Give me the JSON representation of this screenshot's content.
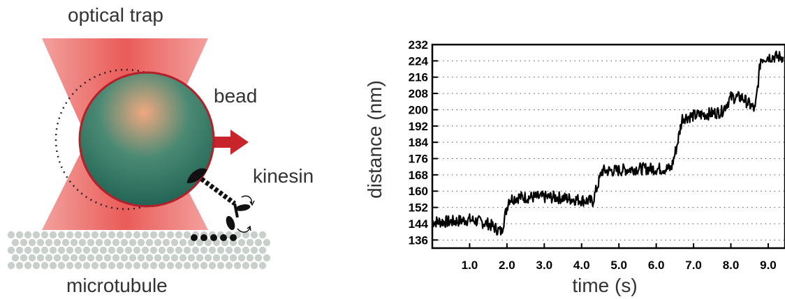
{
  "illustration": {
    "labels": {
      "trap": "optical trap",
      "bead": "bead",
      "kinesin": "kinesin",
      "microtubule": "microtubule"
    },
    "colors": {
      "trap": "#e9534f",
      "bead_center": "#f0a880",
      "bead_edge": "#1d5f50",
      "bead_outline": "#b3202a",
      "arrow": "#c8242c",
      "microtubule": "#c9d0cc",
      "kinesin": "#111111"
    }
  },
  "chart_data": {
    "type": "line",
    "title": "",
    "xlabel": "time (s)",
    "ylabel": "distance (nm)",
    "xlim": [
      0,
      9.45
    ],
    "ylim": [
      132,
      232
    ],
    "x_ticks": [
      "1.0",
      "2.0",
      "3.0",
      "4.0",
      "5.0",
      "6.0",
      "7.0",
      "8.0",
      "9.0"
    ],
    "y_ticks": [
      "136",
      "144",
      "152",
      "160",
      "168",
      "176",
      "184",
      "192",
      "200",
      "208",
      "216",
      "224",
      "232"
    ],
    "grid": "dotted horizontal",
    "series": [
      {
        "values_description": "stepwise bead displacement",
        "x": [
          0.0,
          0.5,
          1.0,
          1.5,
          1.85,
          2.05,
          2.3,
          2.8,
          3.3,
          3.8,
          4.3,
          4.55,
          4.9,
          5.4,
          5.9,
          6.4,
          6.55,
          6.7,
          7.0,
          7.4,
          7.75,
          8.0,
          8.3,
          8.65,
          8.8,
          9.0,
          9.4
        ],
        "y": [
          145,
          145,
          146,
          144,
          140,
          156,
          157,
          157,
          157,
          156,
          155,
          170,
          170,
          171,
          171,
          171,
          182,
          196,
          197,
          198,
          199,
          206,
          206,
          200,
          225,
          226,
          226
        ]
      }
    ]
  }
}
